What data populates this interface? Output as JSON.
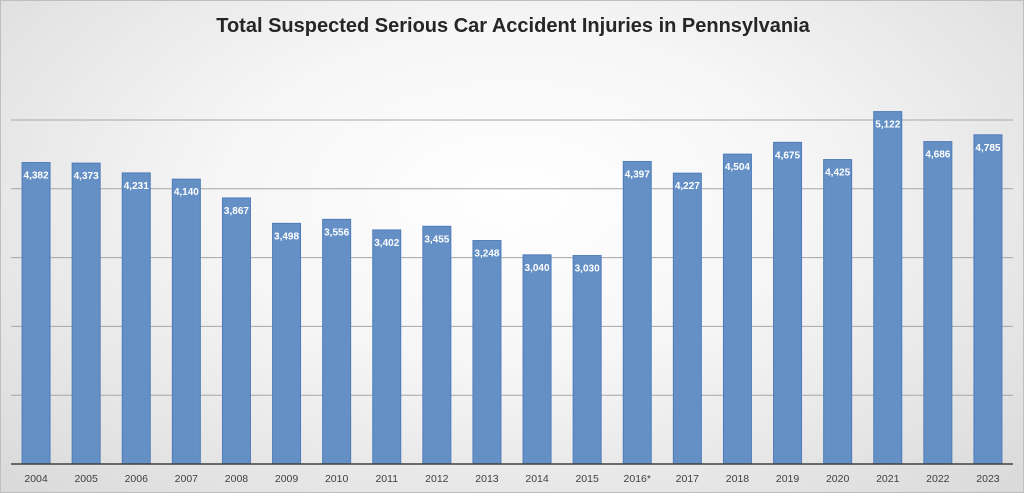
{
  "chart_data": {
    "type": "bar",
    "title": "Total Suspected Serious Car Accident Injuries in Pennsylvania",
    "xlabel": "",
    "ylabel": "",
    "categories": [
      "2004",
      "2005",
      "2006",
      "2007",
      "2008",
      "2009",
      "2010",
      "2011",
      "2012",
      "2013",
      "2014",
      "2015",
      "2016*",
      "2017",
      "2018",
      "2019",
      "2020",
      "2021",
      "2022",
      "2023"
    ],
    "values": [
      4382,
      4373,
      4231,
      4140,
      3867,
      3498,
      3556,
      3402,
      3455,
      3248,
      3040,
      3030,
      4397,
      4227,
      4504,
      4675,
      4425,
      5122,
      4686,
      4785
    ],
    "value_labels": [
      "4,382",
      "4,373",
      "4,231",
      "4,140",
      "3,867",
      "3,498",
      "3,556",
      "3,402",
      "3,455",
      "3,248",
      "3,040",
      "3,030",
      "4,397",
      "4,227",
      "4,504",
      "4,675",
      "4,425",
      "5,122",
      "4,686",
      "4,785"
    ],
    "ylim": [
      0,
      5000
    ],
    "gridlines": [
      1000,
      2000,
      3000,
      4000,
      5000
    ],
    "grid": true,
    "legend": "none",
    "bar_color": "#6590c6"
  }
}
